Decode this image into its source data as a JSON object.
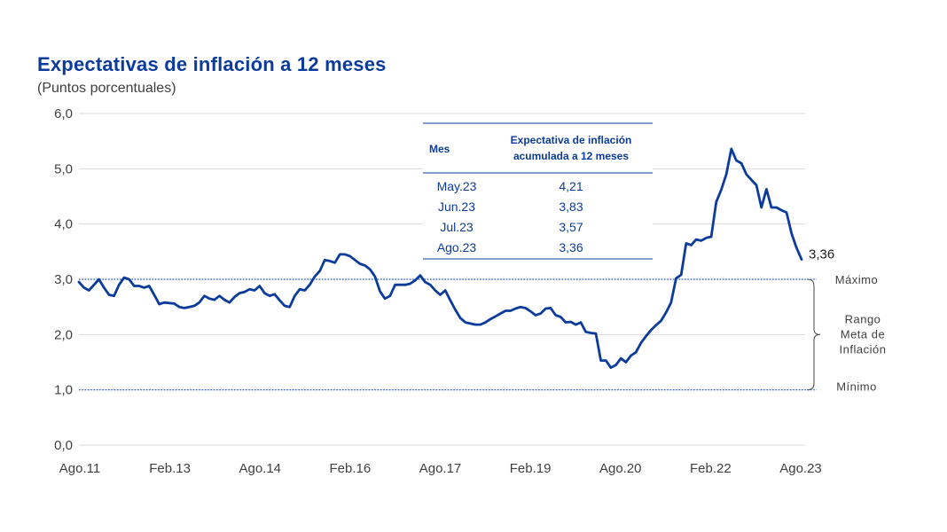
{
  "chart_data": {
    "type": "line",
    "title": "Expectativas de inflación a 12 meses",
    "subtitle": "(Puntos porcentuales)",
    "ylim": [
      0,
      6
    ],
    "yticks": [
      "0,0",
      "1,0",
      "2,0",
      "3,0",
      "4,0",
      "5,0",
      "6,0"
    ],
    "xticks": [
      "Ago.11",
      "Feb.13",
      "Ago.14",
      "Feb.16",
      "Ago.17",
      "Feb.19",
      "Ago.20",
      "Feb.22",
      "Ago.23"
    ],
    "grid": true,
    "series": [
      {
        "color": "#0b3c9c",
        "start": "Ago.11",
        "frequency": "monthly",
        "values": [
          2.95,
          2.85,
          2.8,
          2.9,
          3.0,
          2.85,
          2.72,
          2.7,
          2.9,
          3.03,
          3.0,
          2.88,
          2.88,
          2.85,
          2.88,
          2.72,
          2.55,
          2.58,
          2.57,
          2.56,
          2.5,
          2.48,
          2.5,
          2.52,
          2.58,
          2.7,
          2.65,
          2.63,
          2.7,
          2.63,
          2.58,
          2.68,
          2.75,
          2.77,
          2.82,
          2.8,
          2.88,
          2.75,
          2.7,
          2.73,
          2.62,
          2.52,
          2.5,
          2.7,
          2.82,
          2.8,
          2.9,
          3.05,
          3.15,
          3.35,
          3.33,
          3.3,
          3.45,
          3.45,
          3.42,
          3.35,
          3.28,
          3.25,
          3.18,
          3.05,
          2.78,
          2.65,
          2.7,
          2.9,
          2.9,
          2.9,
          2.92,
          2.98,
          3.07,
          2.95,
          2.9,
          2.8,
          2.72,
          2.8,
          2.62,
          2.45,
          2.3,
          2.22,
          2.2,
          2.18,
          2.18,
          2.22,
          2.28,
          2.33,
          2.38,
          2.43,
          2.43,
          2.47,
          2.5,
          2.48,
          2.42,
          2.35,
          2.38,
          2.47,
          2.48,
          2.35,
          2.32,
          2.22,
          2.23,
          2.18,
          2.22,
          2.05,
          2.03,
          2.02,
          1.53,
          1.53,
          1.4,
          1.45,
          1.57,
          1.5,
          1.62,
          1.68,
          1.85,
          1.97,
          2.08,
          2.17,
          2.25,
          2.4,
          2.58,
          3.02,
          3.08,
          3.65,
          3.62,
          3.72,
          3.7,
          3.75,
          3.77,
          4.4,
          4.62,
          4.9,
          5.36,
          5.15,
          5.1,
          4.9,
          4.8,
          4.7,
          4.3,
          4.63,
          4.3,
          4.3,
          4.25,
          4.21,
          3.83,
          3.57,
          3.36
        ]
      }
    ],
    "reference_lines": [
      {
        "value": 3.0,
        "label": "Máximo"
      },
      {
        "value": 1.0,
        "label": "Mínimo"
      }
    ],
    "range_label": [
      "Rango",
      "Meta de",
      "Inflación"
    ],
    "last_value_label": "3,36"
  },
  "table": {
    "headers": [
      "Mes",
      "Expectativa de inflación",
      "acumulada a 12 meses"
    ],
    "rows": [
      {
        "month": "May.23",
        "value": "4,21"
      },
      {
        "month": "Jun.23",
        "value": "3,83"
      },
      {
        "month": "Jul.23",
        "value": "3,57"
      },
      {
        "month": "Ago.23",
        "value": "3,36"
      }
    ]
  }
}
